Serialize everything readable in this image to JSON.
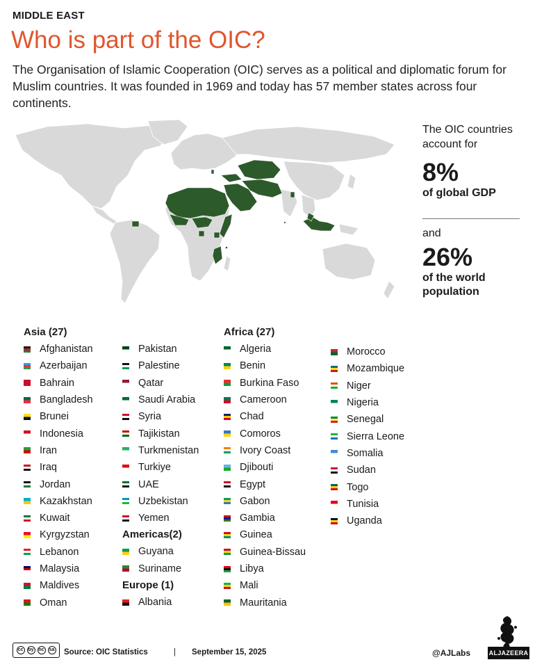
{
  "header": {
    "kicker": "MIDDLE EAST",
    "title": "Who is part of the OIC?",
    "intro": "The Organisation of Islamic Cooperation (OIC) serves as a political and diplomatic forum for Muslim countries. It was founded in 1969 and today has 57 member states across four continents."
  },
  "colors": {
    "title": "#e0552c",
    "member_fill": "#2d5a2a",
    "land_fill": "#d9d9d9"
  },
  "stats": {
    "gdp_lead": "The OIC countries account for",
    "gdp_value": "8%",
    "gdp_label": "of global GDP",
    "pop_lead": "and",
    "pop_value": "26%",
    "pop_label": "of the world population"
  },
  "groups": {
    "asia": {
      "heading": "Asia (27)",
      "col1": [
        "Afghanistan",
        "Azerbaijan",
        "Bahrain",
        "Bangladesh",
        "Brunei",
        "Indonesia",
        "Iran",
        "Iraq",
        "Jordan",
        "Kazakhstan",
        "Kuwait",
        "Kyrgyzstan",
        "Lebanon",
        "Malaysia",
        "Maldives",
        "Oman"
      ],
      "col2": [
        "Pakistan",
        "Palestine",
        "Qatar",
        "Saudi Arabia",
        "Syria",
        "Tajikistan",
        "Turkmenistan",
        "Turkiye",
        "UAE",
        "Uzbekistan",
        "Yemen"
      ]
    },
    "americas": {
      "heading": "Americas(2)",
      "items": [
        "Guyana",
        "Suriname"
      ]
    },
    "europe": {
      "heading": "Europe (1)",
      "items": [
        "Albania"
      ]
    },
    "africa": {
      "heading": "Africa (27)",
      "col1": [
        "Algeria",
        "Benin",
        "Burkina Faso",
        "Cameroon",
        "Chad",
        "Comoros",
        "Ivory Coast",
        "Djibouti",
        "Egypt",
        "Gabon",
        "Gambia",
        "Guinea",
        "Guinea-Bissau",
        "Libya",
        "Mali",
        "Mauritania"
      ],
      "col2": [
        "Morocco",
        "Mozambique",
        "Niger",
        "Nigeria",
        "Senegal",
        "Sierra Leone",
        "Somalia",
        "Sudan",
        "Togo",
        "Tunisia",
        "Uganda"
      ]
    }
  },
  "footer": {
    "license": [
      "cc",
      "by",
      "nc",
      "sa"
    ],
    "source": "Source:  OIC Statistics",
    "separator": "|",
    "date": "September 15, 2025",
    "handle": "@AJLabs",
    "brand": "ALJAZEERA"
  }
}
